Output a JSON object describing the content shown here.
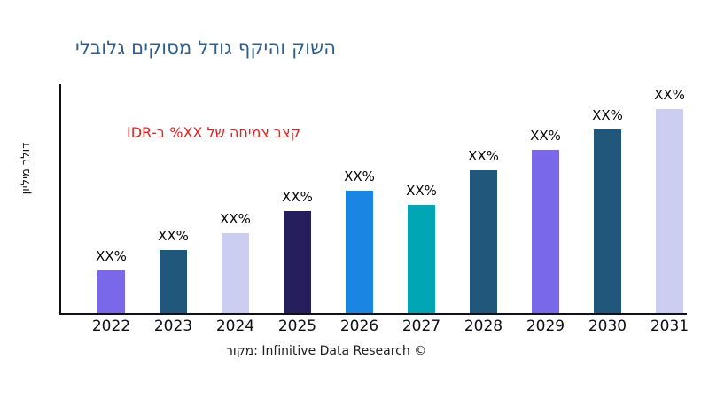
{
  "page": {
    "background": "#ffffff"
  },
  "title": {
    "text": "השוק והיקף גודל מסוקים גלובלי",
    "color": "#2E5F8C"
  },
  "annotation": {
    "text": "קצב צמיחה של XX% ב-IDR",
    "color": "#E32222"
  },
  "y_axis": {
    "label": "דולר מיליון"
  },
  "source": {
    "text": "מקור: Infinitive Data Research ©"
  },
  "chart_data": {
    "type": "bar",
    "title": "השוק והיקף גודל מסוקים גלובלי",
    "categories": [
      "2022",
      "2023",
      "2024",
      "2025",
      "2026",
      "2027",
      "2028",
      "2029",
      "2030",
      "2031"
    ],
    "values": [
      21,
      31,
      39,
      50,
      60,
      53,
      70,
      80,
      90,
      100
    ],
    "value_note": "relative bar heights (y-axis has no numeric ticks; data labels masked as XX%)",
    "bar_labels": [
      "XX%",
      "XX%",
      "XX%",
      "XX%",
      "XX%",
      "XX%",
      "XX%",
      "XX%",
      "XX%",
      "XX%"
    ],
    "bar_colors": [
      "#7A68EA",
      "#21577A",
      "#CBCDF1",
      "#251F5E",
      "#1B85E3",
      "#00A6B4",
      "#21577A",
      "#7A68EA",
      "#21577A",
      "#CBCDF1"
    ],
    "xlabel": "",
    "ylabel": "דולר מיליון",
    "ylim": [
      0,
      108
    ],
    "grid": false,
    "legend": false
  }
}
